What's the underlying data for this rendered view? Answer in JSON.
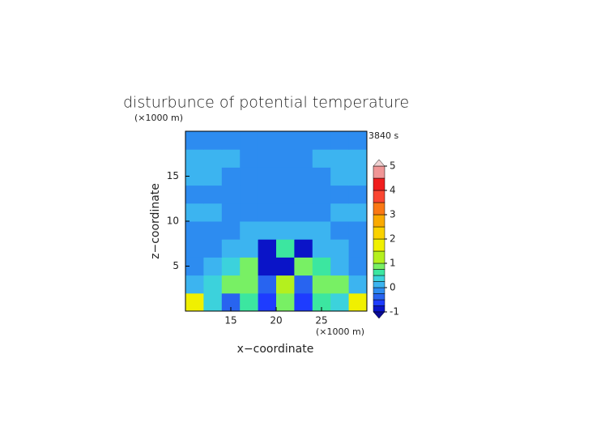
{
  "chart_data": {
    "type": "contour",
    "title": "disturbunce of potential temperature",
    "time_label": "3840 s",
    "x_label": "x−coordinate",
    "y_label": "z−coordinate",
    "x_unit": "(×1000 m)",
    "y_unit": "(×1000 m)",
    "xlim": [
      10,
      30
    ],
    "ylim": [
      0,
      20
    ],
    "xticks": [
      15,
      20,
      25
    ],
    "yticks": [
      5,
      10,
      15
    ],
    "x": [
      11,
      13,
      15,
      17,
      19,
      21,
      23,
      25,
      27,
      29
    ],
    "y": [
      1,
      3,
      5,
      7,
      9,
      11,
      13,
      15,
      17,
      19
    ],
    "z": [
      [
        1.6,
        0.3,
        -0.3,
        0.6,
        -0.7,
        0.8,
        -0.6,
        0.5,
        0.3,
        1.6
      ],
      [
        0.1,
        0.3,
        0.9,
        0.8,
        -0.4,
        1.2,
        -0.4,
        0.8,
        0.8,
        0.1
      ],
      [
        -0.2,
        0.1,
        0.4,
        0.8,
        -0.8,
        -0.8,
        0.8,
        0.6,
        0.1,
        -0.2
      ],
      [
        -0.2,
        -0.2,
        0.1,
        0.2,
        -0.9,
        0.6,
        -0.9,
        0.2,
        0.1,
        -0.2
      ],
      [
        -0.2,
        -0.2,
        -0.2,
        0.1,
        0.1,
        0.1,
        0.1,
        0.1,
        -0.2,
        -0.2
      ],
      [
        0.1,
        0.1,
        -0.2,
        -0.2,
        -0.2,
        -0.2,
        -0.2,
        -0.2,
        0.1,
        0.1
      ],
      [
        -0.2,
        -0.2,
        -0.2,
        -0.2,
        -0.2,
        -0.2,
        -0.2,
        -0.2,
        -0.2,
        -0.2
      ],
      [
        0.1,
        0.1,
        -0.2,
        -0.2,
        -0.2,
        -0.2,
        -0.2,
        -0.2,
        0.1,
        0.1
      ],
      [
        0.1,
        0.1,
        0.1,
        -0.2,
        -0.2,
        -0.2,
        -0.2,
        0.1,
        0.1,
        0.1
      ],
      [
        -0.2,
        -0.2,
        -0.2,
        -0.2,
        -0.2,
        -0.2,
        -0.2,
        -0.2,
        -0.2,
        -0.2
      ]
    ],
    "levels": [
      -1,
      -0.75,
      -0.5,
      -0.25,
      0,
      0.25,
      0.5,
      0.75,
      1,
      1.5,
      2,
      2.5,
      3,
      3.5,
      4,
      4.5,
      5
    ],
    "colors": [
      "#0a14c8",
      "#1e3cff",
      "#2864f0",
      "#2d8cf0",
      "#3cb4f0",
      "#3cd2dc",
      "#3ce6a0",
      "#78f064",
      "#b4f01e",
      "#f0f000",
      "#fad200",
      "#faaa00",
      "#fa7814",
      "#fa4632",
      "#f01e1e",
      "#f09696"
    ],
    "colorbar_ticks": [
      -1,
      0,
      1,
      2,
      3,
      4,
      5
    ],
    "over_color": "#f0d2d2",
    "under_color": "#0a0a96"
  }
}
